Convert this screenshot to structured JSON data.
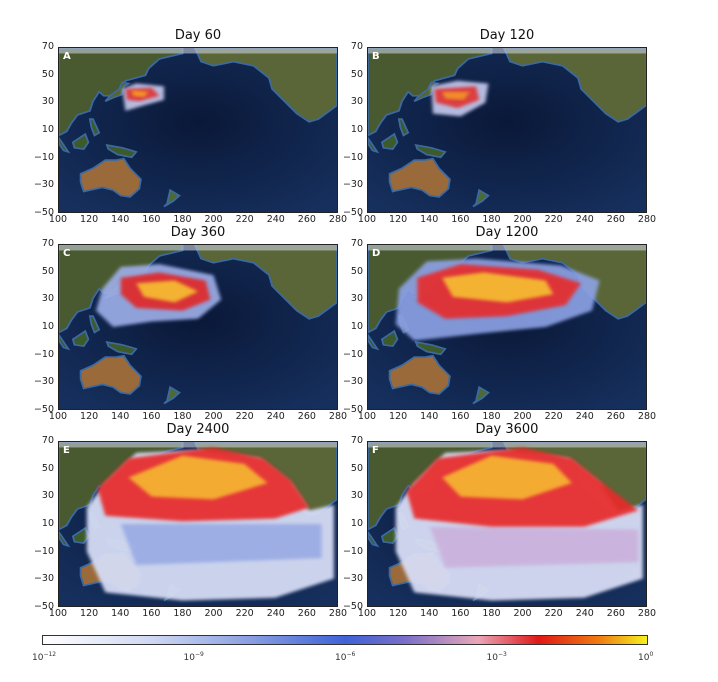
{
  "panels": [
    {
      "letter": "A",
      "title": "Day 60"
    },
    {
      "letter": "B",
      "title": "Day 120"
    },
    {
      "letter": "C",
      "title": "Day 360"
    },
    {
      "letter": "D",
      "title": "Day 1200"
    },
    {
      "letter": "E",
      "title": "Day 2400"
    },
    {
      "letter": "F",
      "title": "Day 3600"
    }
  ],
  "axes": {
    "x_ticks": [
      "100",
      "120",
      "140",
      "160",
      "180",
      "200",
      "220",
      "240",
      "260",
      "280"
    ],
    "y_ticks": [
      "70",
      "50",
      "30",
      "10",
      "−10",
      "−30",
      "−50"
    ],
    "lon_range": [
      100,
      280
    ],
    "lat_range": [
      -50,
      70
    ]
  },
  "colorbar": {
    "scale": "log",
    "ticks": [
      {
        "base": "10",
        "exp": "−12"
      },
      {
        "base": "10",
        "exp": "−9"
      },
      {
        "base": "10",
        "exp": "−6"
      },
      {
        "base": "10",
        "exp": "−3"
      },
      {
        "base": "10",
        "exp": "0"
      }
    ],
    "colors": [
      "#ffffff",
      "#3f62d6",
      "#e8a7b8",
      "#e01818",
      "#f6f020"
    ]
  }
}
